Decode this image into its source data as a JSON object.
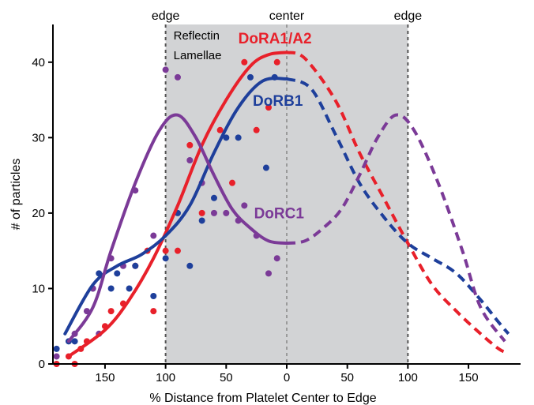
{
  "chart_data": {
    "type": "line",
    "title": "",
    "xlabel": "% Distance from Platelet Center to Edge",
    "ylabel": "# of particles",
    "x_axis": {
      "range": [
        -193,
        193
      ],
      "ticks": [
        {
          "value": -150,
          "label": "150"
        },
        {
          "value": -100,
          "label": "100"
        },
        {
          "value": -50,
          "label": "50"
        },
        {
          "value": 0,
          "label": "0"
        },
        {
          "value": 50,
          "label": "50"
        },
        {
          "value": 100,
          "label": "100"
        },
        {
          "value": 150,
          "label": "150"
        }
      ]
    },
    "y_axis": {
      "range": [
        0,
        45
      ],
      "ticks": [
        0,
        10,
        20,
        30,
        40
      ]
    },
    "shaded_region": {
      "x": [
        -100,
        100
      ],
      "color": "#d2d3d5",
      "label_line1": "Reflectin",
      "label_line2": "Lamellae"
    },
    "reference_lines": [
      {
        "x": -100,
        "label": "edge",
        "color": "#555555"
      },
      {
        "x": 0,
        "label": "center",
        "color": "#9a9a9a"
      },
      {
        "x": 100,
        "label": "edge",
        "color": "#555555"
      }
    ],
    "series": [
      {
        "name": "DoRA1/A2",
        "color": "#e8202a",
        "points": [
          [
            -190,
            0
          ],
          [
            -175,
            0
          ],
          [
            -180,
            1
          ],
          [
            -170,
            2
          ],
          [
            -165,
            3
          ],
          [
            -150,
            5
          ],
          [
            -145,
            7
          ],
          [
            -135,
            8
          ],
          [
            -125,
            13
          ],
          [
            -115,
            15
          ],
          [
            -110,
            7
          ],
          [
            -100,
            15
          ],
          [
            -90,
            15
          ],
          [
            -80,
            29
          ],
          [
            -70,
            20
          ],
          [
            -55,
            31
          ],
          [
            -45,
            24
          ],
          [
            -35,
            40
          ],
          [
            -25,
            31
          ],
          [
            -15,
            34
          ],
          [
            -8,
            40
          ]
        ],
        "fit": [
          [
            -180,
            1
          ],
          [
            -150,
            4.5
          ],
          [
            -130,
            8.5
          ],
          [
            -110,
            14
          ],
          [
            -90,
            21
          ],
          [
            -70,
            29
          ],
          [
            -50,
            35
          ],
          [
            -30,
            39.5
          ],
          [
            -15,
            41
          ],
          [
            0,
            41.3
          ]
        ],
        "mirror_fit": [
          [
            0,
            41.3
          ],
          [
            15,
            40.5
          ],
          [
            40,
            35
          ],
          [
            60,
            28
          ],
          [
            80,
            22
          ],
          [
            100,
            16
          ],
          [
            120,
            10.5
          ],
          [
            140,
            7
          ],
          [
            160,
            4
          ],
          [
            175,
            2
          ],
          [
            182,
            1.5
          ]
        ]
      },
      {
        "name": "DoRB1",
        "color": "#1e3f9b",
        "points": [
          [
            -190,
            2
          ],
          [
            -180,
            3
          ],
          [
            -175,
            3
          ],
          [
            -160,
            10
          ],
          [
            -155,
            12
          ],
          [
            -145,
            10
          ],
          [
            -140,
            12
          ],
          [
            -130,
            10
          ],
          [
            -125,
            13
          ],
          [
            -110,
            9
          ],
          [
            -100,
            14
          ],
          [
            -90,
            20
          ],
          [
            -80,
            13
          ],
          [
            -70,
            19
          ],
          [
            -60,
            22
          ],
          [
            -50,
            30
          ],
          [
            -40,
            30
          ],
          [
            -30,
            38
          ],
          [
            -17,
            26
          ],
          [
            -10,
            38
          ]
        ],
        "fit": [
          [
            -183,
            4
          ],
          [
            -160,
            10.5
          ],
          [
            -140,
            13
          ],
          [
            -120,
            14.5
          ],
          [
            -100,
            17
          ],
          [
            -80,
            21
          ],
          [
            -60,
            28
          ],
          [
            -40,
            34
          ],
          [
            -20,
            37.5
          ],
          [
            0,
            37.8
          ]
        ],
        "mirror_fit": [
          [
            0,
            37.8
          ],
          [
            20,
            36.5
          ],
          [
            40,
            30.5
          ],
          [
            60,
            24
          ],
          [
            80,
            19.5
          ],
          [
            100,
            16
          ],
          [
            120,
            14
          ],
          [
            140,
            12
          ],
          [
            160,
            8.5
          ],
          [
            175,
            5.5
          ],
          [
            183,
            4
          ]
        ]
      },
      {
        "name": "DoRC1",
        "color": "#7b3a97",
        "points": [
          [
            -190,
            1
          ],
          [
            -175,
            4
          ],
          [
            -165,
            7
          ],
          [
            -160,
            10
          ],
          [
            -155,
            4
          ],
          [
            -145,
            14
          ],
          [
            -135,
            13
          ],
          [
            -125,
            23
          ],
          [
            -110,
            17
          ],
          [
            -100,
            39
          ],
          [
            -90,
            38
          ],
          [
            -80,
            27
          ],
          [
            -70,
            24
          ],
          [
            -60,
            20
          ],
          [
            -50,
            20
          ],
          [
            -40,
            19
          ],
          [
            -35,
            21
          ],
          [
            -25,
            17
          ],
          [
            -15,
            12
          ],
          [
            -8,
            14
          ]
        ],
        "fit": [
          [
            -180,
            3
          ],
          [
            -160,
            7.5
          ],
          [
            -145,
            15
          ],
          [
            -125,
            24
          ],
          [
            -105,
            31
          ],
          [
            -90,
            33
          ],
          [
            -75,
            30
          ],
          [
            -60,
            25
          ],
          [
            -45,
            20.5
          ],
          [
            -30,
            18
          ],
          [
            -15,
            16.3
          ],
          [
            0,
            16
          ]
        ],
        "mirror_fit": [
          [
            0,
            16
          ],
          [
            15,
            16.3
          ],
          [
            30,
            18
          ],
          [
            45,
            20.5
          ],
          [
            60,
            25
          ],
          [
            75,
            30
          ],
          [
            90,
            33
          ],
          [
            105,
            31
          ],
          [
            125,
            24
          ],
          [
            145,
            15
          ],
          [
            160,
            7.5
          ],
          [
            180,
            3
          ]
        ]
      }
    ],
    "series_labels": [
      {
        "series": "DoRA1/A2",
        "x": -40,
        "y": 42.5
      },
      {
        "series": "DoRB1",
        "x": -28,
        "y": 34.2
      },
      {
        "series": "DoRC1",
        "x": -27,
        "y": 19.3
      }
    ],
    "grid": false
  }
}
